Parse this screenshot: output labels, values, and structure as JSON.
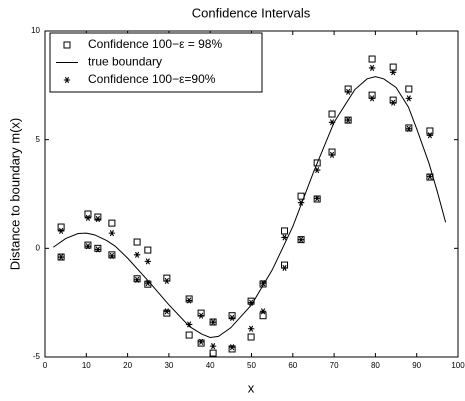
{
  "chart_data": {
    "type": "scatter",
    "title": "Confidence Intervals",
    "x_label": "x",
    "y_label": "Distance to boundary m(x)",
    "xlim": [
      0,
      100
    ],
    "ylim": [
      -5,
      10
    ],
    "xticks": [
      0,
      10,
      20,
      30,
      40,
      50,
      60,
      70,
      80,
      90,
      100
    ],
    "yticks": [
      -5,
      0,
      5,
      10
    ],
    "grid": false,
    "legend": "upper left",
    "series": [
      {
        "name": "Confidence 100−ε = 98%",
        "marker": "square",
        "color": "#000000",
        "x": [
          3.9,
          3.9,
          10.4,
          10.4,
          12.8,
          12.8,
          16.2,
          16.2,
          22.3,
          22.3,
          24.9,
          24.9,
          29.5,
          29.5,
          34.9,
          34.9,
          37.8,
          37.8,
          40.7,
          40.7,
          45.3,
          45.3,
          49.9,
          49.9,
          52.8,
          52.8,
          58,
          58,
          62,
          62,
          65.9,
          65.9,
          69.5,
          69.5,
          73.4,
          73.4,
          79.2,
          79.2,
          84.3,
          84.3,
          88.1,
          88.1,
          93.2,
          93.2
        ],
        "values": [
          0.98,
          -0.4,
          1.58,
          0.15,
          1.44,
          0.0,
          1.16,
          -0.3,
          0.29,
          -1.4,
          -0.08,
          -1.65,
          -1.37,
          -2.98,
          -2.33,
          -3.99,
          -2.98,
          -4.36,
          -3.39,
          -4.82,
          -3.1,
          -4.63,
          -2.43,
          -4.08,
          -1.64,
          -3.1,
          0.8,
          -0.77,
          2.4,
          0.4,
          3.93,
          2.27,
          6.18,
          4.43,
          7.33,
          5.9,
          8.71,
          7.05,
          8.34,
          6.82,
          7.33,
          5.54,
          5.4,
          3.28
        ]
      },
      {
        "name": "true boundary",
        "marker": "none",
        "color": "#000000",
        "x": [
          2,
          5,
          8,
          10,
          12,
          15,
          17,
          20,
          25,
          30,
          35,
          38,
          40,
          42,
          45,
          50,
          55,
          60,
          65,
          70,
          75,
          78,
          80,
          82,
          85,
          88,
          90,
          93,
          95,
          97
        ],
        "values": [
          0.05,
          0.45,
          0.68,
          0.7,
          0.62,
          0.35,
          0.1,
          -0.45,
          -1.5,
          -2.6,
          -3.6,
          -3.95,
          -4.1,
          -4.05,
          -3.65,
          -2.6,
          -1.0,
          1.0,
          3.5,
          5.8,
          7.3,
          7.8,
          7.9,
          7.8,
          7.4,
          6.5,
          5.5,
          3.9,
          2.6,
          1.2
        ]
      },
      {
        "name": "Confidence 100−ε=90%",
        "marker": "star",
        "color": "#000000",
        "x": [
          3.9,
          3.9,
          10.4,
          10.4,
          12.8,
          12.8,
          16.2,
          16.2,
          22.3,
          22.3,
          24.9,
          24.9,
          29.5,
          29.5,
          34.9,
          34.9,
          37.8,
          37.8,
          40.7,
          40.7,
          45.3,
          45.3,
          49.9,
          49.9,
          52.8,
          52.8,
          58,
          58,
          62,
          62,
          65.9,
          65.9,
          69.5,
          69.5,
          73.4,
          73.4,
          79.2,
          79.2,
          84.3,
          84.3,
          88.1,
          88.1,
          93.2,
          93.2
        ],
        "values": [
          0.8,
          -0.4,
          1.4,
          0.1,
          1.35,
          -0.05,
          0.7,
          -0.35,
          -0.3,
          -1.45,
          -0.6,
          -1.6,
          -1.5,
          -2.9,
          -2.4,
          -3.5,
          -3.1,
          -4.3,
          -3.4,
          -4.5,
          -3.2,
          -4.55,
          -2.5,
          -3.7,
          -1.6,
          -2.9,
          0.5,
          -0.9,
          2.1,
          0.4,
          3.6,
          2.3,
          5.8,
          4.3,
          7.2,
          5.9,
          8.3,
          6.9,
          8.1,
          6.7,
          6.9,
          5.5,
          5.2,
          3.3
        ]
      }
    ]
  }
}
